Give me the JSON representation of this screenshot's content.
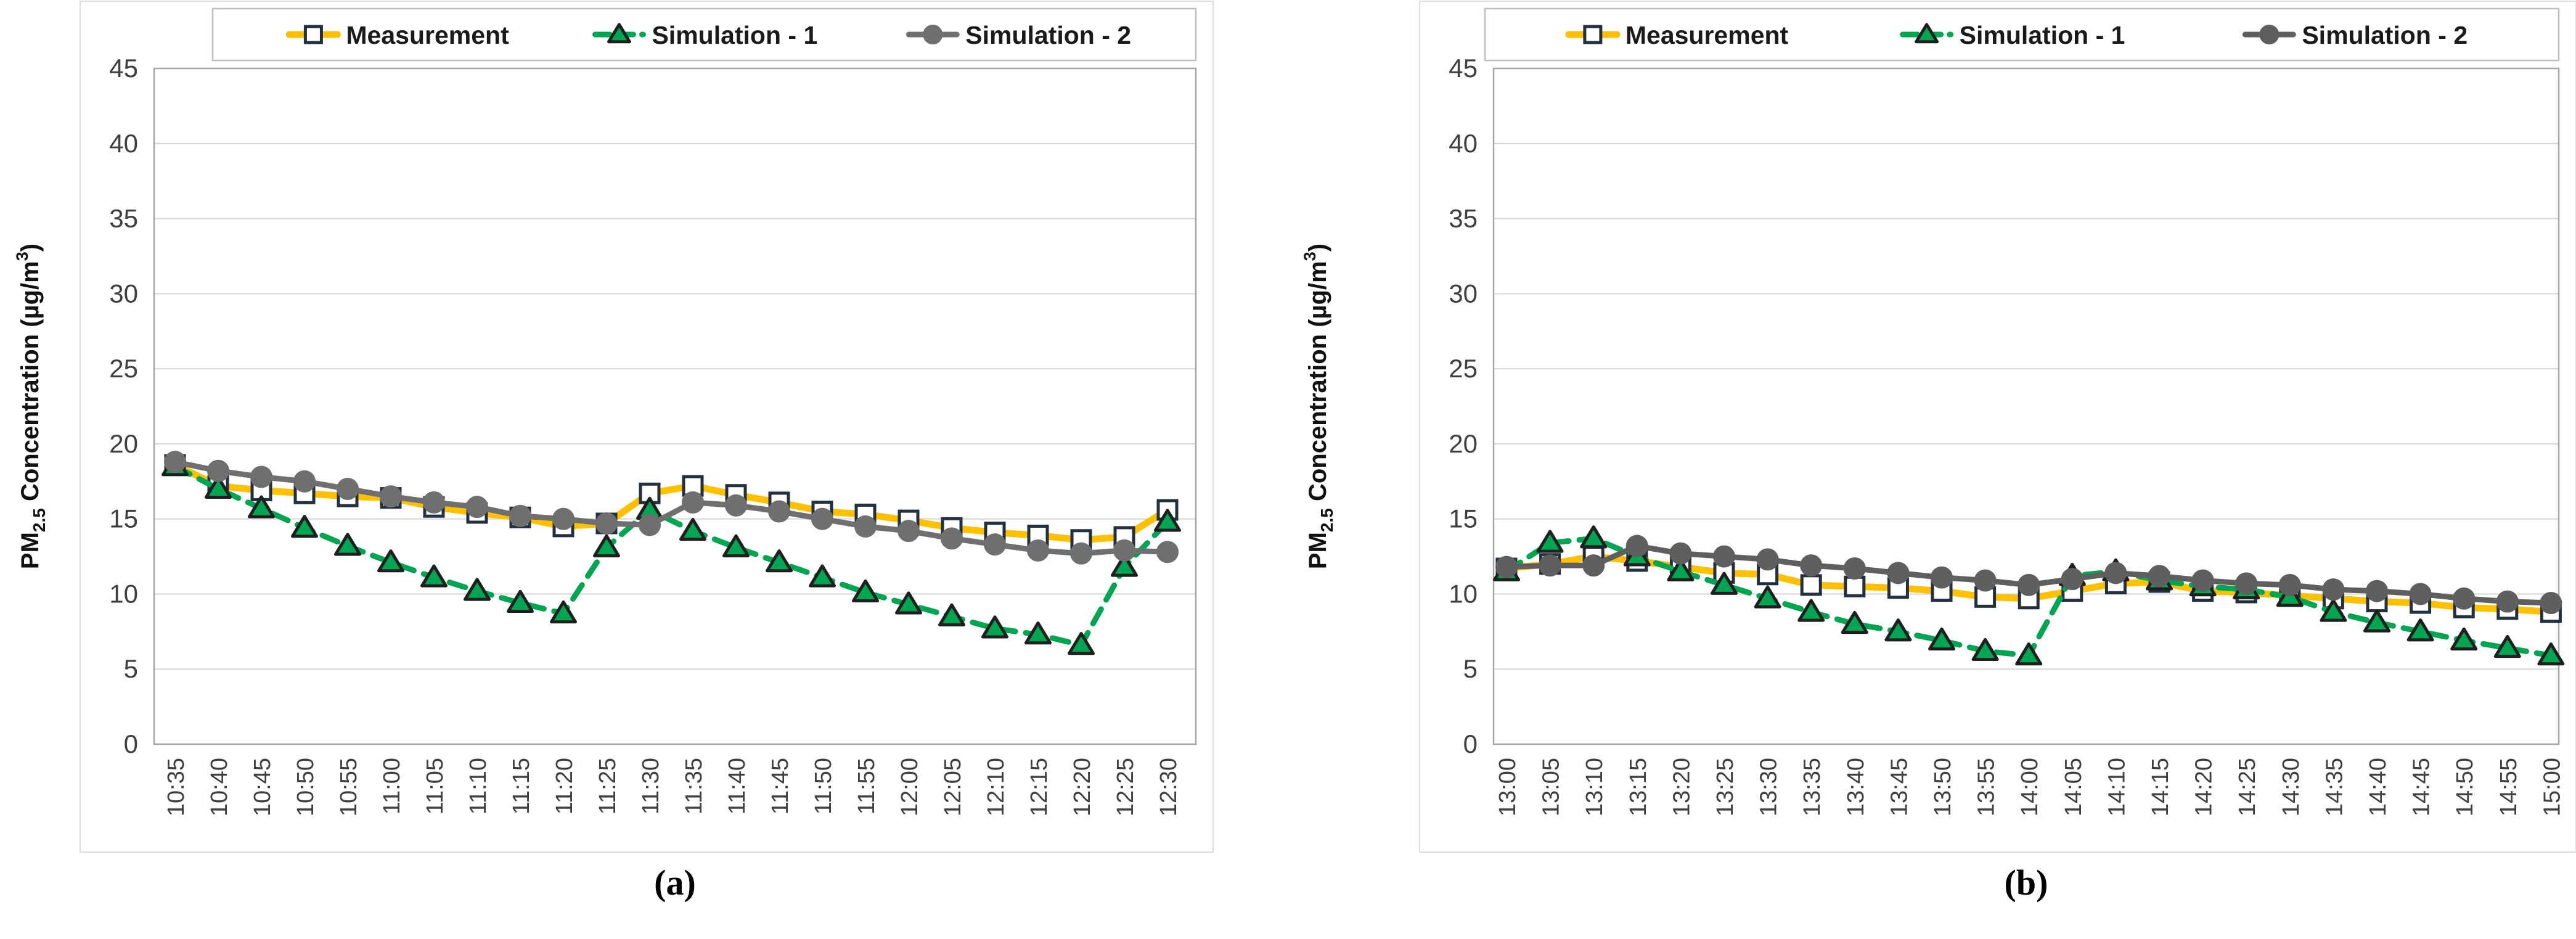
{
  "y_axis_label": {
    "pm": "PM",
    "sub": "2.5",
    "mid": " Concentration (µg/m",
    "sup": "3",
    "end": ")"
  },
  "legend": {
    "items": [
      "Measurement",
      "Simulation - 1",
      "Simulation - 2"
    ]
  },
  "style": {
    "measurement_color": "#FFC000",
    "sim1_color": "#00A551",
    "sim2_color_a": "#6F6F6F",
    "sim2_color_b": "#5F5F5F",
    "marker_edge_dark": "#22303F",
    "grid_color": "#D6D6D6",
    "plot_border_color": "#A6A6A6",
    "outer_border_color": "#DCDCDC",
    "tick_text_color": "#3F3F3F",
    "legend_text_color": "#1A1A1A"
  },
  "chart_data": [
    {
      "id": "a",
      "caption": "(a)",
      "type": "line",
      "title": "",
      "xlabel": "",
      "ylabel": "PM2.5 Concentration (µg/m³)",
      "ylim": [
        0,
        45
      ],
      "ytick_step": 5,
      "grid": true,
      "legend_position": "top",
      "categories": [
        "10:35",
        "10:40",
        "10:45",
        "10:50",
        "10:55",
        "11:00",
        "11:05",
        "11:10",
        "11:15",
        "11:20",
        "11:25",
        "11:30",
        "11:35",
        "11:40",
        "11:45",
        "11:50",
        "11:55",
        "12:00",
        "12:05",
        "12:10",
        "12:15",
        "12:20",
        "12:25",
        "12:30"
      ],
      "series": [
        {
          "name": "Measurement",
          "marker": "square",
          "line": "solid",
          "color": "#FFC000",
          "values": [
            18.6,
            17.2,
            16.9,
            16.7,
            16.5,
            16.4,
            15.8,
            15.4,
            15.1,
            14.5,
            14.7,
            16.7,
            17.2,
            16.6,
            16.1,
            15.5,
            15.3,
            14.9,
            14.4,
            14.1,
            13.9,
            13.6,
            13.8,
            15.6
          ]
        },
        {
          "name": "Simulation - 1",
          "marker": "triangle",
          "line": "dashed",
          "color": "#00A551",
          "values": [
            18.5,
            17.0,
            15.7,
            14.4,
            13.2,
            12.1,
            11.1,
            10.2,
            9.4,
            8.7,
            13.1,
            15.6,
            14.2,
            13.1,
            12.1,
            11.1,
            10.1,
            9.3,
            8.5,
            7.7,
            7.3,
            6.6,
            11.8,
            14.8
          ]
        },
        {
          "name": "Simulation - 2",
          "marker": "circle",
          "line": "solid",
          "color": "#6F6F6F",
          "values": [
            18.8,
            18.2,
            17.8,
            17.5,
            17.0,
            16.5,
            16.1,
            15.8,
            15.2,
            15.0,
            14.7,
            14.6,
            16.1,
            15.9,
            15.5,
            15.0,
            14.5,
            14.2,
            13.7,
            13.3,
            12.9,
            12.7,
            12.9,
            12.8
          ]
        }
      ]
    },
    {
      "id": "b",
      "caption": "(b)",
      "type": "line",
      "title": "",
      "xlabel": "",
      "ylabel": "PM2.5 Concentration (µg/m³)",
      "ylim": [
        0,
        45
      ],
      "ytick_step": 5,
      "grid": true,
      "legend_position": "top",
      "categories": [
        "13:00",
        "13:05",
        "13:10",
        "13:15",
        "13:20",
        "13:25",
        "13:30",
        "13:35",
        "13:40",
        "13:45",
        "13:50",
        "13:55",
        "14:00",
        "14:05",
        "14:10",
        "14:15",
        "14:20",
        "14:25",
        "14:30",
        "14:35",
        "14:40",
        "14:45",
        "14:50",
        "14:55",
        "15:00"
      ],
      "series": [
        {
          "name": "Measurement",
          "marker": "square",
          "line": "solid",
          "color": "#FFC000",
          "values": [
            11.7,
            12.0,
            12.5,
            12.2,
            11.8,
            11.4,
            11.3,
            10.6,
            10.5,
            10.4,
            10.2,
            9.8,
            9.7,
            10.2,
            10.7,
            10.8,
            10.2,
            10.1,
            9.9,
            9.7,
            9.5,
            9.4,
            9.1,
            9.0,
            8.8
          ]
        },
        {
          "name": "Simulation - 1",
          "marker": "triangle",
          "line": "dashed",
          "color": "#00A551",
          "values": [
            11.5,
            13.4,
            13.7,
            12.5,
            11.5,
            10.6,
            9.7,
            8.8,
            8.0,
            7.5,
            6.9,
            6.2,
            5.9,
            11.2,
            11.5,
            10.9,
            10.5,
            10.3,
            9.8,
            8.8,
            8.1,
            7.5,
            6.9,
            6.4,
            5.9
          ]
        },
        {
          "name": "Simulation - 2",
          "marker": "circle",
          "line": "solid",
          "color": "#5F5F5F",
          "values": [
            11.8,
            11.9,
            11.9,
            13.2,
            12.7,
            12.5,
            12.3,
            11.9,
            11.7,
            11.4,
            11.1,
            10.9,
            10.6,
            11.0,
            11.4,
            11.2,
            10.9,
            10.7,
            10.6,
            10.3,
            10.2,
            10.0,
            9.7,
            9.5,
            9.4
          ]
        }
      ]
    }
  ]
}
